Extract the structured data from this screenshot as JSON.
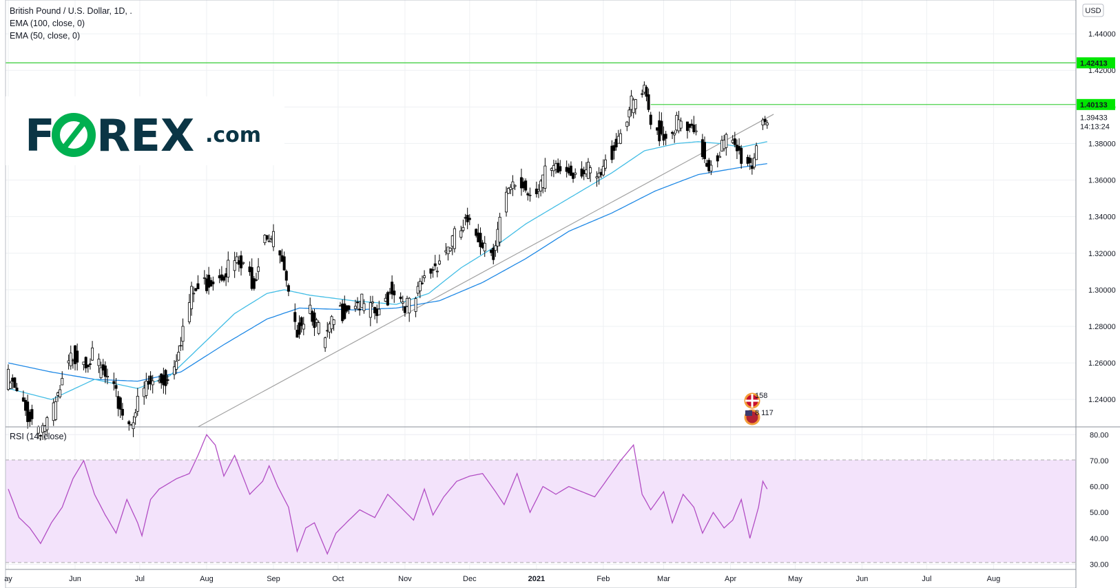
{
  "legend": {
    "title": "British Pound / U.S. Dollar, 1D, .",
    "ema100": "EMA (100, close, 0)",
    "ema50": "EMA (50, close, 0)"
  },
  "logo": {
    "main": "FOREX",
    "suffix": ".com"
  },
  "currency_button": "USD",
  "price_labels": {
    "upper": "1.42413",
    "lower": "1.40133",
    "last": "1.39433",
    "countdown": "14:13:24"
  },
  "event_markers": {
    "uk_label": "158",
    "us_label": "8 117"
  },
  "rsi_panel": {
    "title": "RSI (14, close)"
  },
  "colors": {
    "resistance": "#33cc33",
    "resistance_badge": "#00e600",
    "ema50": "#42bde5",
    "ema100": "#1e88e5",
    "trendline": "#a0a0a0",
    "rsi_line": "#b24dc4",
    "rsi_band": "#f3e3fb",
    "logo_accent": "#00b050",
    "logo_text": "#0b3545"
  },
  "chart_data": {
    "type": "candlestick",
    "price_axis": {
      "range": [
        1.225,
        1.4585
      ],
      "ticks": [
        "1.24000",
        "1.26000",
        "1.28000",
        "1.30000",
        "1.32000",
        "1.34000",
        "1.36000",
        "1.38000",
        "1.40000",
        "1.42000",
        "1.44000"
      ]
    },
    "time_axis": {
      "labels": [
        "ay",
        "Jun",
        "Jul",
        "Aug",
        "Sep",
        "Oct",
        "Nov",
        "Dec",
        "2021",
        "Feb",
        "Mar",
        "Apr",
        "May",
        "Jun",
        "Jul",
        "Aug"
      ],
      "label_days": [
        0,
        31,
        61,
        92,
        123,
        153,
        184,
        214,
        245,
        276,
        304,
        335,
        365,
        396,
        426,
        457
      ]
    },
    "price_anchors": [
      [
        0,
        1.254
      ],
      [
        8,
        1.236
      ],
      [
        15,
        1.228
      ],
      [
        20,
        1.232
      ],
      [
        30,
        1.268
      ],
      [
        40,
        1.265
      ],
      [
        48,
        1.248
      ],
      [
        56,
        1.23
      ],
      [
        64,
        1.25
      ],
      [
        75,
        1.255
      ],
      [
        85,
        1.3
      ],
      [
        95,
        1.31
      ],
      [
        105,
        1.318
      ],
      [
        114,
        1.308
      ],
      [
        119,
        1.336
      ],
      [
        125,
        1.327
      ],
      [
        133,
        1.28
      ],
      [
        140,
        1.295
      ],
      [
        146,
        1.272
      ],
      [
        152,
        1.288
      ],
      [
        160,
        1.298
      ],
      [
        172,
        1.288
      ],
      [
        178,
        1.305
      ],
      [
        187,
        1.292
      ],
      [
        193,
        1.308
      ],
      [
        202,
        1.324
      ],
      [
        212,
        1.338
      ],
      [
        220,
        1.33
      ],
      [
        225,
        1.325
      ],
      [
        230,
        1.35
      ],
      [
        236,
        1.362
      ],
      [
        242,
        1.357
      ],
      [
        250,
        1.366
      ],
      [
        258,
        1.368
      ],
      [
        266,
        1.37
      ],
      [
        274,
        1.362
      ],
      [
        281,
        1.382
      ],
      [
        288,
        1.402
      ],
      [
        295,
        1.41
      ],
      [
        298,
        1.392
      ],
      [
        305,
        1.388
      ],
      [
        310,
        1.394
      ],
      [
        318,
        1.387
      ],
      [
        325,
        1.372
      ],
      [
        333,
        1.384
      ],
      [
        340,
        1.376
      ],
      [
        345,
        1.372
      ],
      [
        350,
        1.4
      ],
      [
        352,
        1.394
      ]
    ],
    "ema50_anchors": [
      [
        0,
        1.246
      ],
      [
        20,
        1.24
      ],
      [
        40,
        1.251
      ],
      [
        60,
        1.246
      ],
      [
        75,
        1.253
      ],
      [
        90,
        1.27
      ],
      [
        105,
        1.287
      ],
      [
        120,
        1.298
      ],
      [
        128,
        1.3
      ],
      [
        140,
        1.297
      ],
      [
        160,
        1.294
      ],
      [
        180,
        1.292
      ],
      [
        195,
        1.298
      ],
      [
        210,
        1.312
      ],
      [
        225,
        1.323
      ],
      [
        240,
        1.336
      ],
      [
        260,
        1.35
      ],
      [
        280,
        1.364
      ],
      [
        295,
        1.376
      ],
      [
        310,
        1.38
      ],
      [
        320,
        1.381
      ],
      [
        330,
        1.38
      ],
      [
        340,
        1.378
      ],
      [
        352,
        1.381
      ]
    ],
    "ema100_anchors": [
      [
        0,
        1.26
      ],
      [
        20,
        1.255
      ],
      [
        40,
        1.251
      ],
      [
        60,
        1.25
      ],
      [
        80,
        1.255
      ],
      [
        100,
        1.27
      ],
      [
        120,
        1.284
      ],
      [
        135,
        1.29
      ],
      [
        160,
        1.289
      ],
      [
        180,
        1.29
      ],
      [
        200,
        1.294
      ],
      [
        220,
        1.304
      ],
      [
        240,
        1.317
      ],
      [
        260,
        1.332
      ],
      [
        280,
        1.342
      ],
      [
        300,
        1.354
      ],
      [
        320,
        1.363
      ],
      [
        340,
        1.367
      ],
      [
        352,
        1.369
      ]
    ],
    "trendline": {
      "from": [
        88,
        1.225
      ],
      "to": [
        355,
        1.396
      ]
    },
    "resistance_levels": [
      1.42413,
      1.40133
    ],
    "series": [
      {
        "name": "EMA (100, close, 0)"
      },
      {
        "name": "EMA (50, close, 0)"
      }
    ],
    "rsi": {
      "range": [
        28,
        83
      ],
      "overbought": 70,
      "oversold": 30,
      "ticks": [
        "30.00",
        "40.00",
        "50.00",
        "60.00",
        "70.00",
        "80.00"
      ],
      "anchors": [
        [
          0,
          59
        ],
        [
          5,
          48
        ],
        [
          10,
          44
        ],
        [
          15,
          38
        ],
        [
          20,
          46
        ],
        [
          25,
          52
        ],
        [
          30,
          63
        ],
        [
          35,
          70
        ],
        [
          40,
          57
        ],
        [
          45,
          49
        ],
        [
          50,
          42
        ],
        [
          55,
          55
        ],
        [
          60,
          46
        ],
        [
          62,
          41
        ],
        [
          66,
          55
        ],
        [
          70,
          59
        ],
        [
          78,
          63
        ],
        [
          84,
          65
        ],
        [
          88,
          72
        ],
        [
          92,
          80
        ],
        [
          96,
          76
        ],
        [
          100,
          64
        ],
        [
          105,
          72
        ],
        [
          112,
          57
        ],
        [
          118,
          62
        ],
        [
          121,
          68
        ],
        [
          125,
          60
        ],
        [
          130,
          52
        ],
        [
          134,
          35
        ],
        [
          138,
          44
        ],
        [
          142,
          46
        ],
        [
          148,
          34
        ],
        [
          152,
          42
        ],
        [
          158,
          47
        ],
        [
          163,
          51
        ],
        [
          170,
          48
        ],
        [
          176,
          57
        ],
        [
          182,
          52
        ],
        [
          188,
          47
        ],
        [
          193,
          59
        ],
        [
          197,
          49
        ],
        [
          202,
          56
        ],
        [
          208,
          62
        ],
        [
          214,
          64
        ],
        [
          220,
          65
        ],
        [
          226,
          58
        ],
        [
          230,
          53
        ],
        [
          236,
          65
        ],
        [
          242,
          50
        ],
        [
          248,
          60
        ],
        [
          254,
          57
        ],
        [
          260,
          60
        ],
        [
          266,
          58
        ],
        [
          272,
          56
        ],
        [
          278,
          63
        ],
        [
          284,
          70
        ],
        [
          290,
          76
        ],
        [
          294,
          57
        ],
        [
          298,
          51
        ],
        [
          304,
          58
        ],
        [
          308,
          46
        ],
        [
          313,
          57
        ],
        [
          318,
          52
        ],
        [
          322,
          42
        ],
        [
          327,
          50
        ],
        [
          332,
          44
        ],
        [
          336,
          47
        ],
        [
          340,
          55
        ],
        [
          344,
          40
        ],
        [
          348,
          52
        ],
        [
          350,
          62
        ],
        [
          352,
          59
        ]
      ]
    }
  }
}
